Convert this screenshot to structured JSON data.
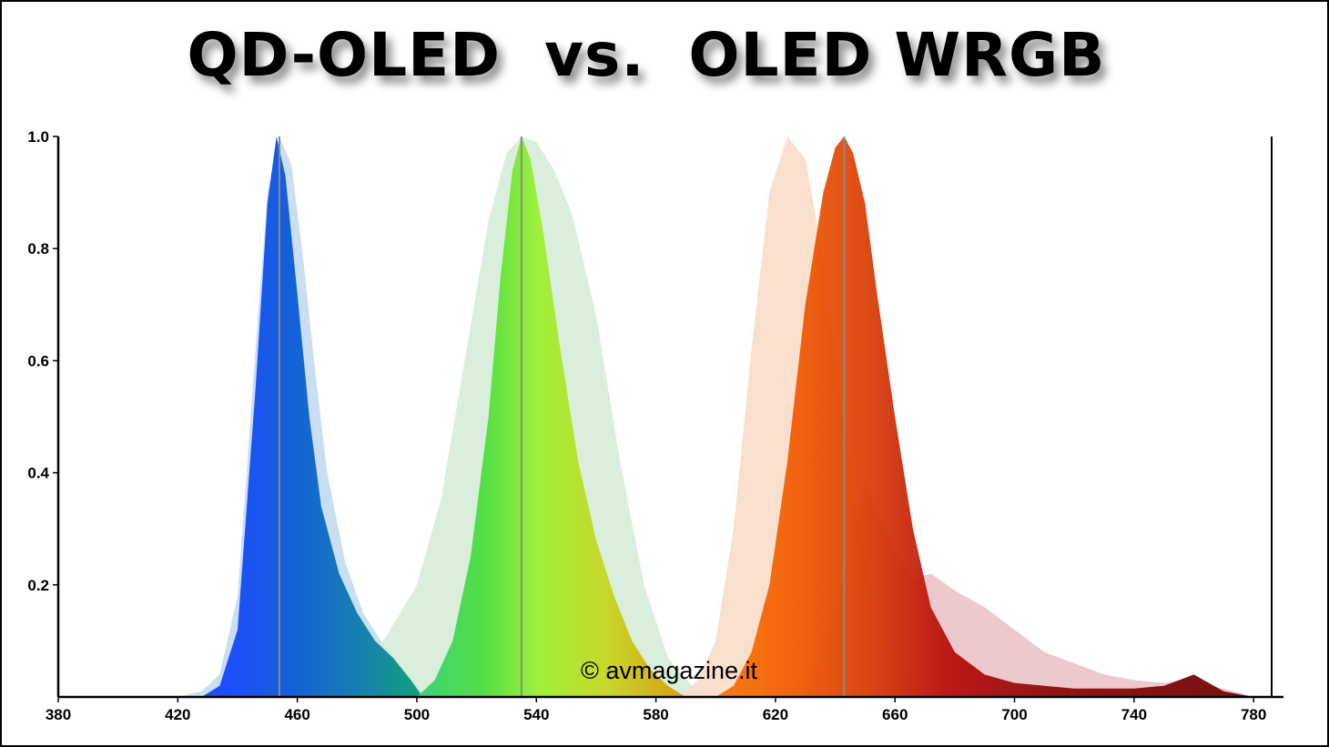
{
  "title": "QD-OLED  vs.  OLED WRGB",
  "watermark": "© avmagazine.it",
  "chart_data": {
    "type": "area",
    "title": "QD-OLED  vs.  OLED WRGB",
    "xlabel": "",
    "ylabel": "",
    "xlim": [
      380,
      790
    ],
    "ylim": [
      0,
      1.0
    ],
    "x_ticks": [
      380,
      420,
      460,
      500,
      540,
      580,
      620,
      660,
      700,
      740,
      780
    ],
    "y_ticks": [
      0.2,
      0.4,
      0.6,
      0.8,
      1.0
    ],
    "y_tick_labels": [
      "0.2",
      "0.4",
      "0.6",
      "0.8",
      "1.0"
    ],
    "grid": false,
    "peak_lines": [
      454,
      535,
      643
    ],
    "series": [
      {
        "color": "#c6dcef",
        "x": [
          420,
          428,
          434,
          440,
          446,
          450,
          454,
          458,
          462,
          466,
          470,
          476,
          482,
          488,
          494,
          500,
          504
        ],
        "y": [
          0.0,
          0.01,
          0.04,
          0.18,
          0.62,
          0.9,
          1.0,
          0.95,
          0.78,
          0.58,
          0.4,
          0.24,
          0.15,
          0.1,
          0.06,
          0.02,
          0.0
        ]
      },
      {
        "color": "#d4ebd6",
        "x": [
          425,
          440,
          460,
          480,
          490,
          500,
          508,
          516,
          524,
          530,
          535,
          540,
          546,
          552,
          560,
          568,
          576,
          584,
          592,
          600
        ],
        "y": [
          0.0,
          0.005,
          0.01,
          0.04,
          0.11,
          0.2,
          0.35,
          0.6,
          0.85,
          0.97,
          1.0,
          0.99,
          0.94,
          0.86,
          0.68,
          0.42,
          0.2,
          0.07,
          0.02,
          0.0
        ]
      },
      {
        "color": "#f8dcc8",
        "x": [
          588,
          594,
          600,
          606,
          612,
          618,
          624,
          630,
          636,
          642,
          648,
          656,
          664,
          674
        ],
        "y": [
          0.0,
          0.03,
          0.1,
          0.3,
          0.62,
          0.9,
          1.0,
          0.96,
          0.78,
          0.52,
          0.3,
          0.12,
          0.04,
          0.0
        ]
      },
      {
        "color": "#e8bcc0",
        "x": [
          630,
          640,
          650,
          660,
          666,
          672,
          680,
          690,
          700,
          710,
          720,
          730,
          740,
          750,
          756,
          760,
          764,
          770,
          780
        ],
        "y": [
          0.0,
          0.15,
          0.38,
          0.26,
          0.21,
          0.22,
          0.19,
          0.16,
          0.12,
          0.08,
          0.06,
          0.04,
          0.03,
          0.025,
          0.03,
          0.04,
          0.02,
          0.015,
          0.0
        ]
      },
      {
        "color": "#1f5fe6",
        "x": [
          428,
          434,
          440,
          446,
          450,
          453,
          456,
          460,
          464,
          468,
          474,
          480,
          486,
          492,
          498,
          502
        ],
        "y": [
          0.0,
          0.02,
          0.12,
          0.55,
          0.88,
          1.0,
          0.93,
          0.72,
          0.5,
          0.34,
          0.22,
          0.15,
          0.1,
          0.07,
          0.03,
          0.0
        ]
      },
      {
        "color": "#86e23a",
        "x": [
          500,
          506,
          512,
          518,
          524,
          528,
          532,
          535,
          538,
          542,
          548,
          554,
          560,
          566,
          572,
          578,
          584,
          590
        ],
        "y": [
          0.0,
          0.03,
          0.1,
          0.25,
          0.5,
          0.75,
          0.94,
          1.0,
          0.96,
          0.84,
          0.62,
          0.42,
          0.28,
          0.18,
          0.1,
          0.05,
          0.02,
          0.0
        ]
      },
      {
        "color": "#d9420c",
        "x": [
          600,
          606,
          612,
          618,
          624,
          630,
          636,
          640,
          643,
          646,
          650,
          654,
          660,
          666,
          672,
          680,
          690,
          700,
          710,
          720,
          730,
          740,
          750,
          760,
          770,
          780
        ],
        "y": [
          0.0,
          0.02,
          0.08,
          0.2,
          0.42,
          0.7,
          0.9,
          0.98,
          1.0,
          0.97,
          0.88,
          0.72,
          0.5,
          0.3,
          0.16,
          0.08,
          0.04,
          0.025,
          0.02,
          0.015,
          0.015,
          0.015,
          0.02,
          0.04,
          0.01,
          0.0
        ]
      }
    ]
  }
}
